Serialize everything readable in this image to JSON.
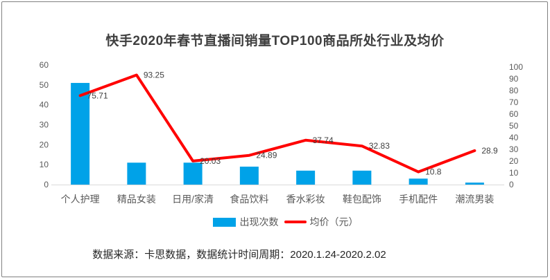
{
  "chart_data": {
    "type": "combo",
    "title": "快手2020年春节直播间销量TOP100商品所处行业及均价",
    "categories": [
      "个人护理",
      "精品女装",
      "日用/家清",
      "食品饮料",
      "香水彩妆",
      "鞋包配饰",
      "手机配件",
      "潮流男装"
    ],
    "series": [
      {
        "name": "出现次数",
        "type": "bar",
        "axis": "left",
        "color": "#00a2e8",
        "values": [
          51,
          11,
          11,
          9,
          7,
          7,
          3,
          1
        ]
      },
      {
        "name": "均价（元）",
        "type": "line",
        "axis": "right",
        "color": "#ff0000",
        "values": [
          75.71,
          93.25,
          20.03,
          24.89,
          37.74,
          32.83,
          10.8,
          28.9
        ],
        "point_labels": [
          "75.71",
          "93.25",
          "20.03",
          "24.89",
          "37.74",
          "32.83",
          "10.8",
          "28.9"
        ]
      }
    ],
    "left_axis": {
      "min": 0,
      "max": 60,
      "ticks": [
        0,
        10,
        20,
        30,
        40,
        50,
        60
      ]
    },
    "right_axis": {
      "min": 0,
      "max": 100,
      "ticks": [
        0,
        10,
        20,
        30,
        40,
        50,
        60,
        70,
        80,
        90,
        100
      ]
    },
    "grid": false,
    "legend_position": "bottom",
    "colors": {
      "axis_line": "#d9d9d9",
      "tick_text": "#595959",
      "category_text": "#595959",
      "point_label_text": "#404040",
      "title_text": "#3f3f3f"
    }
  },
  "footer": {
    "source": "数据来源：卡思数据，数据统计时间周期：2020.1.24-2020.2.02"
  }
}
